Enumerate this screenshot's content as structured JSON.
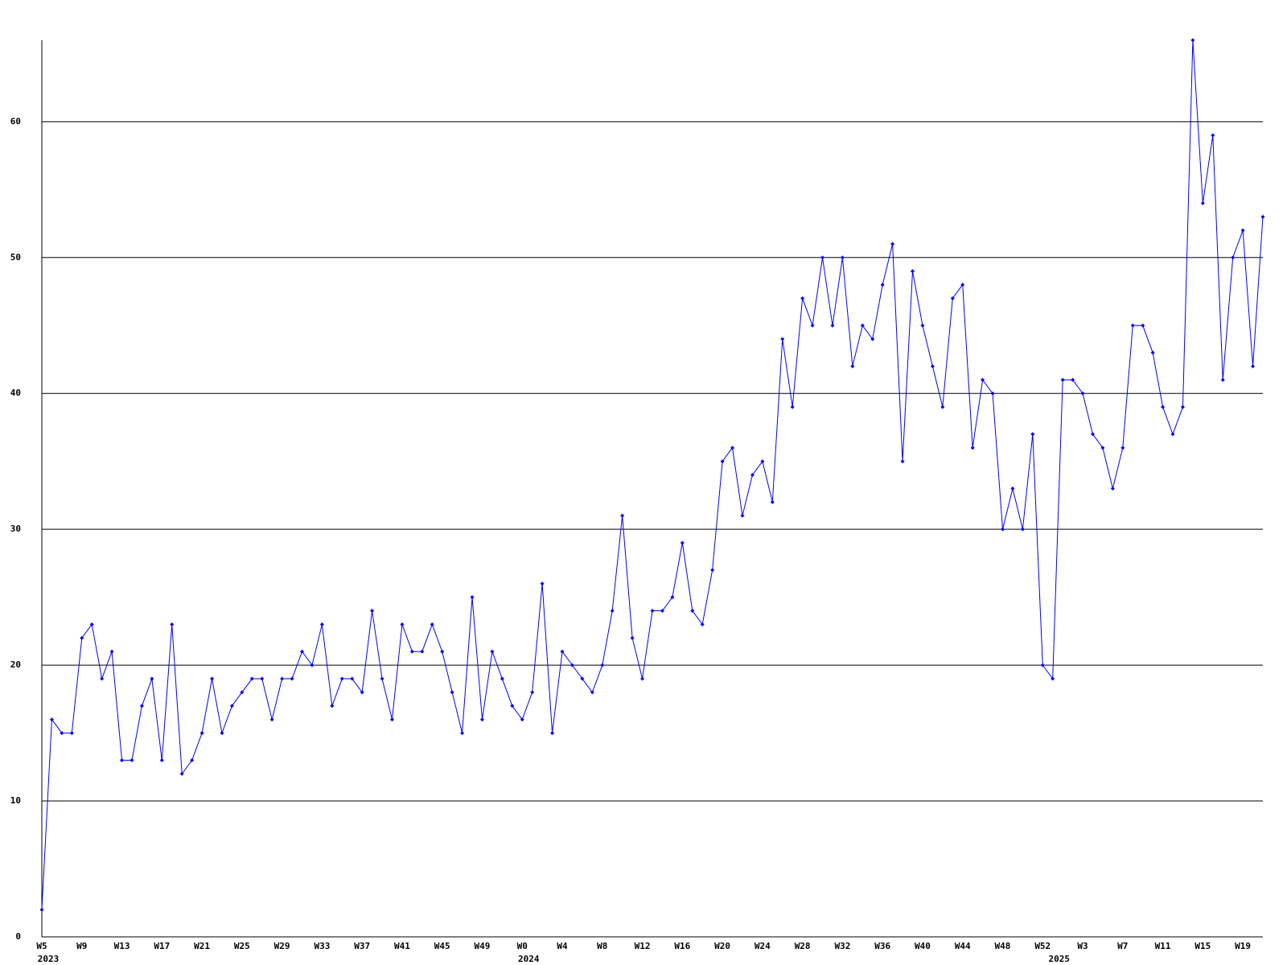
{
  "chart_data": {
    "type": "line",
    "categories": [
      "W5",
      null,
      null,
      null,
      "W9",
      null,
      null,
      null,
      "W13",
      null,
      null,
      null,
      "W17",
      null,
      null,
      null,
      "W21",
      null,
      null,
      null,
      "W25",
      null,
      null,
      null,
      "W29",
      null,
      null,
      null,
      "W33",
      null,
      null,
      null,
      "W37",
      null,
      null,
      null,
      "W41",
      null,
      null,
      null,
      "W45",
      null,
      null,
      null,
      "W49",
      null,
      null,
      null,
      "W0",
      null,
      null,
      null,
      "W4",
      null,
      null,
      null,
      "W8",
      null,
      null,
      null,
      "W12",
      null,
      null,
      null,
      "W16",
      null,
      null,
      null,
      "W20",
      null,
      null,
      null,
      "W24",
      null,
      null,
      null,
      "W28",
      null,
      null,
      null,
      "W32",
      null,
      null,
      null,
      "W36",
      null,
      null,
      null,
      "W40",
      null,
      null,
      null,
      "W44",
      null,
      null,
      null,
      "W48",
      null,
      null,
      null,
      "W52",
      null,
      null,
      null,
      "W3",
      null,
      null,
      null,
      "W7",
      null,
      null,
      null,
      "W11",
      null,
      null,
      null,
      "W15",
      null,
      null,
      null,
      "W19",
      null,
      null
    ],
    "category_years": [
      "2023",
      null,
      null,
      null,
      null,
      null,
      null,
      null,
      null,
      null,
      null,
      null,
      null,
      null,
      null,
      null,
      null,
      null,
      null,
      null,
      null,
      null,
      null,
      null,
      null,
      null,
      null,
      null,
      null,
      null,
      null,
      null,
      null,
      null,
      null,
      null,
      null,
      null,
      null,
      null,
      null,
      null,
      null,
      null,
      null,
      null,
      null,
      null,
      "2024",
      null,
      null,
      null,
      null,
      null,
      null,
      null,
      null,
      null,
      null,
      null,
      null,
      null,
      null,
      null,
      null,
      null,
      null,
      null,
      null,
      null,
      null,
      null,
      null,
      null,
      null,
      null,
      null,
      null,
      null,
      null,
      null,
      null,
      null,
      null,
      null,
      null,
      null,
      null,
      null,
      null,
      null,
      null,
      null,
      null,
      null,
      null,
      null,
      null,
      null,
      null,
      null,
      "2025",
      null,
      null,
      null,
      null,
      null,
      null,
      null,
      null,
      null,
      null,
      null,
      null,
      null,
      null,
      null,
      null,
      null,
      null,
      null,
      null,
      null
    ],
    "values": [
      2,
      16,
      15,
      15,
      22,
      23,
      19,
      21,
      13,
      13,
      17,
      19,
      13,
      23,
      12,
      13,
      15,
      19,
      15,
      17,
      18,
      19,
      19,
      16,
      19,
      19,
      21,
      20,
      23,
      17,
      19,
      19,
      18,
      24,
      19,
      16,
      23,
      21,
      21,
      23,
      21,
      18,
      15,
      25,
      16,
      21,
      19,
      17,
      16,
      18,
      26,
      15,
      21,
      20,
      19,
      18,
      20,
      24,
      31,
      22,
      19,
      24,
      24,
      25,
      29,
      24,
      23,
      27,
      35,
      36,
      31,
      34,
      35,
      32,
      44,
      39,
      47,
      45,
      50,
      45,
      50,
      42,
      45,
      44,
      48,
      51,
      35,
      49,
      45,
      42,
      39,
      47,
      48,
      36,
      41,
      40,
      30,
      33,
      30,
      37,
      20,
      19,
      41,
      41,
      40,
      37,
      36,
      33,
      36,
      45,
      45,
      43,
      39,
      37,
      39,
      66,
      54,
      59,
      41,
      50,
      52,
      42,
      53
    ],
    "color": "#0000ff",
    "ylim": [
      0,
      66
    ],
    "yticks": [
      0,
      10,
      20,
      30,
      40,
      50,
      60
    ],
    "grid": true
  }
}
